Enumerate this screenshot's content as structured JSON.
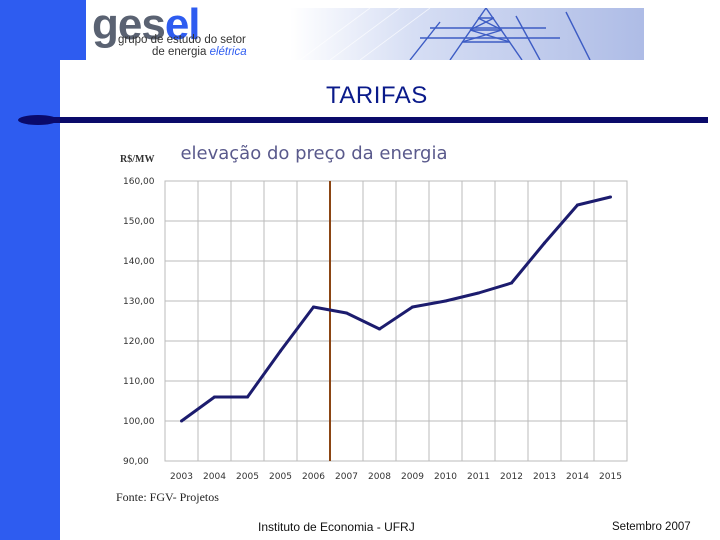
{
  "header": {
    "logo_prefix": "ges",
    "logo_accent": "el",
    "logo_line1": "grupo de estudo do setor",
    "logo_line2_prefix": "de energia",
    "logo_line2_accent": "elétrica"
  },
  "slide": {
    "title": "TARIFAS",
    "source_note": "Fonte: FGV- Projetos",
    "footer_center": "Instituto de Economia - UFRJ",
    "footer_right": "Setembro 2007"
  },
  "colors": {
    "left_bar": "#2e5cf0",
    "title": "#0a1a8a",
    "chart_title": "#5a5a8c",
    "series": "#1c1c6e",
    "marker_line": "#8b4513",
    "grid": "#bbbbbb"
  },
  "chart_data": {
    "type": "line",
    "title": "elevação do preço da energia",
    "ylabel": "R$/MW",
    "xlabel": "",
    "categories": [
      "2003",
      "2004",
      "2005",
      "2005",
      "2006",
      "2007",
      "2008",
      "2009",
      "2010",
      "2011",
      "2012",
      "2013",
      "2014",
      "2015"
    ],
    "ylim": [
      90,
      160
    ],
    "yticks": [
      "90,00",
      "100,00",
      "110,00",
      "120,00",
      "130,00",
      "140,00",
      "150,00",
      "160,00"
    ],
    "grid": true,
    "legend": "none",
    "series": [
      {
        "values": [
          100.0,
          106.0,
          106.0,
          117.5,
          128.5,
          127.0,
          123.0,
          128.5,
          130.0,
          132.0,
          134.5,
          144.5,
          154.0,
          156.0
        ]
      }
    ],
    "reference_line_at_category_index": 4.5
  }
}
